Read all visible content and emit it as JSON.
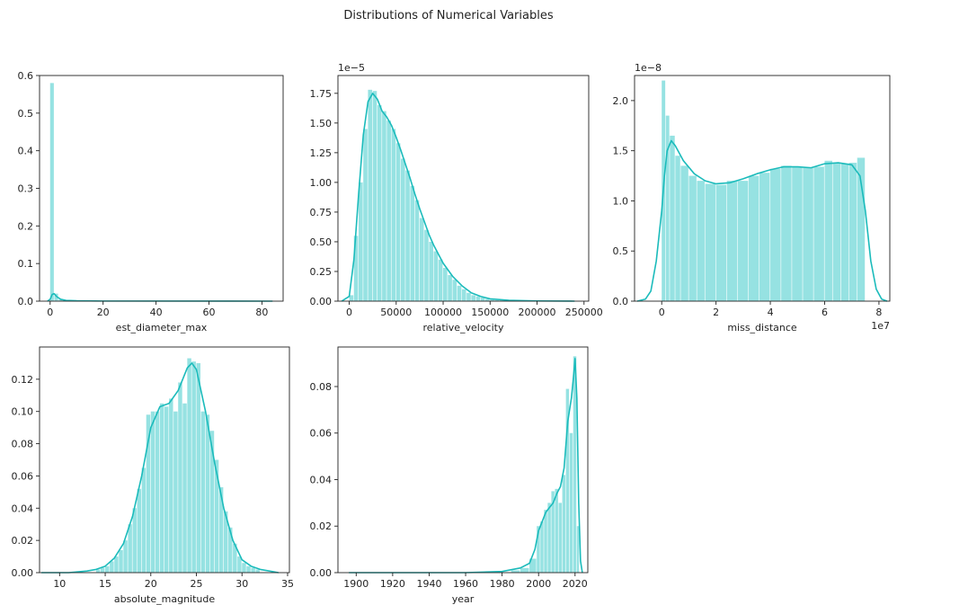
{
  "figure": {
    "title": "Distributions of Numerical Variables"
  },
  "colors": {
    "bar_fill": "#96e2e2",
    "kde_line": "#1bbbbb",
    "axes": "#222222"
  },
  "chart_data": [
    {
      "type": "histogram+kde",
      "xlabel": "est_diameter_max",
      "xlim": [
        -4,
        88
      ],
      "ylim": [
        0,
        0.6
      ],
      "xticks": [
        0,
        20,
        40,
        60,
        80
      ],
      "xtick_labels": [
        "0",
        "20",
        "40",
        "60",
        "80"
      ],
      "yticks": [
        0.0,
        0.1,
        0.2,
        0.3,
        0.4,
        0.5,
        0.6
      ],
      "ytick_labels": [
        "0.0",
        "0.1",
        "0.2",
        "0.3",
        "0.4",
        "0.5",
        "0.6"
      ],
      "y_exponent": "",
      "x_exponent": "",
      "bins": [
        [
          0,
          1.6,
          0.58
        ],
        [
          1.6,
          3.2,
          0.02
        ],
        [
          3.2,
          4.8,
          0.004
        ],
        [
          4.8,
          6.4,
          0.002
        ]
      ],
      "kde": [
        [
          -1,
          0
        ],
        [
          0,
          0.005
        ],
        [
          0.8,
          0.018
        ],
        [
          1.5,
          0.02
        ],
        [
          2.5,
          0.012
        ],
        [
          4,
          0.005
        ],
        [
          6,
          0.002
        ],
        [
          10,
          0.001
        ],
        [
          20,
          0.0003
        ],
        [
          84,
          0
        ]
      ]
    },
    {
      "type": "histogram+kde",
      "xlabel": "relative_velocity",
      "xlim": [
        -12000,
        255000
      ],
      "ylim": [
        0,
        1.9
      ],
      "xticks": [
        0,
        50000,
        100000,
        150000,
        200000,
        250000
      ],
      "xtick_labels": [
        "0",
        "50000",
        "100000",
        "150000",
        "200000",
        "250000"
      ],
      "yticks": [
        0.0,
        0.25,
        0.5,
        0.75,
        1.0,
        1.25,
        1.5,
        1.75
      ],
      "ytick_labels": [
        "0.00",
        "0.25",
        "0.50",
        "0.75",
        "1.00",
        "1.25",
        "1.50",
        "1.75"
      ],
      "y_exponent": "1e−5",
      "x_exponent": "",
      "bins": [
        [
          0,
          5000,
          0.05
        ],
        [
          5000,
          10000,
          0.55
        ],
        [
          10000,
          15000,
          1.0
        ],
        [
          15000,
          20000,
          1.45
        ],
        [
          20000,
          25000,
          1.78
        ],
        [
          25000,
          30000,
          1.77
        ],
        [
          30000,
          35000,
          1.65
        ],
        [
          35000,
          40000,
          1.6
        ],
        [
          40000,
          45000,
          1.52
        ],
        [
          45000,
          50000,
          1.45
        ],
        [
          50000,
          55000,
          1.33
        ],
        [
          55000,
          60000,
          1.2
        ],
        [
          60000,
          65000,
          1.1
        ],
        [
          65000,
          70000,
          0.97
        ],
        [
          70000,
          75000,
          0.85
        ],
        [
          75000,
          80000,
          0.7
        ],
        [
          80000,
          85000,
          0.6
        ],
        [
          85000,
          90000,
          0.5
        ],
        [
          90000,
          95000,
          0.42
        ],
        [
          95000,
          100000,
          0.35
        ],
        [
          100000,
          105000,
          0.28
        ],
        [
          105000,
          110000,
          0.22
        ],
        [
          110000,
          115000,
          0.18
        ],
        [
          115000,
          120000,
          0.13
        ],
        [
          120000,
          125000,
          0.1
        ],
        [
          125000,
          130000,
          0.07
        ],
        [
          130000,
          135000,
          0.05
        ],
        [
          135000,
          140000,
          0.04
        ],
        [
          140000,
          145000,
          0.03
        ],
        [
          145000,
          150000,
          0.02
        ],
        [
          150000,
          155000,
          0.015
        ],
        [
          155000,
          160000,
          0.01
        ],
        [
          160000,
          170000,
          0.007
        ],
        [
          170000,
          180000,
          0.004
        ],
        [
          180000,
          190000,
          0.003
        ],
        [
          190000,
          200000,
          0.002
        ]
      ],
      "kde": [
        [
          -8000,
          0
        ],
        [
          0,
          0.04
        ],
        [
          5000,
          0.35
        ],
        [
          10000,
          0.9
        ],
        [
          15000,
          1.4
        ],
        [
          20000,
          1.68
        ],
        [
          25000,
          1.75
        ],
        [
          30000,
          1.7
        ],
        [
          35000,
          1.6
        ],
        [
          40000,
          1.55
        ],
        [
          45000,
          1.48
        ],
        [
          50000,
          1.38
        ],
        [
          55000,
          1.27
        ],
        [
          60000,
          1.15
        ],
        [
          65000,
          1.03
        ],
        [
          70000,
          0.9
        ],
        [
          75000,
          0.78
        ],
        [
          80000,
          0.67
        ],
        [
          85000,
          0.56
        ],
        [
          90000,
          0.47
        ],
        [
          100000,
          0.32
        ],
        [
          110000,
          0.21
        ],
        [
          120000,
          0.13
        ],
        [
          130000,
          0.07
        ],
        [
          140000,
          0.04
        ],
        [
          150000,
          0.02
        ],
        [
          170000,
          0.007
        ],
        [
          200000,
          0.002
        ],
        [
          240000,
          0
        ]
      ]
    },
    {
      "type": "histogram+kde",
      "xlabel": "miss_distance",
      "xlim": [
        -1.0,
        8.4
      ],
      "ylim": [
        0,
        2.25
      ],
      "xticks": [
        0,
        2,
        4,
        6,
        8
      ],
      "xtick_labels": [
        "0",
        "2",
        "4",
        "6",
        "8"
      ],
      "yticks": [
        0.0,
        0.5,
        1.0,
        1.5,
        2.0
      ],
      "ytick_labels": [
        "0.0",
        "0.5",
        "1.0",
        "1.5",
        "2.0"
      ],
      "y_exponent": "1e−8",
      "x_exponent": "1e7",
      "bins": [
        [
          0,
          0.15,
          2.2
        ],
        [
          0.15,
          0.3,
          1.85
        ],
        [
          0.3,
          0.5,
          1.65
        ],
        [
          0.5,
          0.7,
          1.45
        ],
        [
          0.7,
          1.0,
          1.35
        ],
        [
          1.0,
          1.3,
          1.25
        ],
        [
          1.3,
          1.6,
          1.2
        ],
        [
          1.6,
          2.0,
          1.17
        ],
        [
          2.0,
          2.4,
          1.16
        ],
        [
          2.4,
          2.8,
          1.2
        ],
        [
          2.8,
          3.2,
          1.2
        ],
        [
          3.2,
          3.6,
          1.25
        ],
        [
          3.6,
          4.0,
          1.28
        ],
        [
          4.0,
          4.4,
          1.32
        ],
        [
          4.4,
          4.8,
          1.35
        ],
        [
          4.8,
          5.2,
          1.34
        ],
        [
          5.2,
          5.6,
          1.33
        ],
        [
          5.6,
          6.0,
          1.34
        ],
        [
          6.0,
          6.3,
          1.4
        ],
        [
          6.3,
          6.6,
          1.38
        ],
        [
          6.6,
          6.9,
          1.37
        ],
        [
          6.9,
          7.2,
          1.38
        ],
        [
          7.2,
          7.5,
          1.43
        ]
      ],
      "kde": [
        [
          -0.9,
          0
        ],
        [
          -0.6,
          0.02
        ],
        [
          -0.4,
          0.1
        ],
        [
          -0.2,
          0.4
        ],
        [
          0,
          0.9
        ],
        [
          0.1,
          1.25
        ],
        [
          0.2,
          1.5
        ],
        [
          0.35,
          1.6
        ],
        [
          0.5,
          1.55
        ],
        [
          0.8,
          1.4
        ],
        [
          1.2,
          1.27
        ],
        [
          1.6,
          1.2
        ],
        [
          2.0,
          1.17
        ],
        [
          2.5,
          1.18
        ],
        [
          3.0,
          1.22
        ],
        [
          3.5,
          1.27
        ],
        [
          4.0,
          1.31
        ],
        [
          4.5,
          1.34
        ],
        [
          5.0,
          1.34
        ],
        [
          5.5,
          1.33
        ],
        [
          6.0,
          1.37
        ],
        [
          6.5,
          1.38
        ],
        [
          7.0,
          1.36
        ],
        [
          7.3,
          1.25
        ],
        [
          7.5,
          0.9
        ],
        [
          7.7,
          0.4
        ],
        [
          7.9,
          0.12
        ],
        [
          8.1,
          0.02
        ],
        [
          8.3,
          0
        ]
      ]
    },
    {
      "type": "histogram+kde",
      "xlabel": "absolute_magnitude",
      "xlim": [
        7.8,
        35.2
      ],
      "ylim": [
        0,
        0.14
      ],
      "xticks": [
        10,
        15,
        20,
        25,
        30,
        35
      ],
      "xtick_labels": [
        "10",
        "15",
        "20",
        "25",
        "30",
        "35"
      ],
      "yticks": [
        0.0,
        0.02,
        0.04,
        0.06,
        0.08,
        0.1,
        0.12
      ],
      "ytick_labels": [
        "0.00",
        "0.02",
        "0.04",
        "0.06",
        "0.08",
        "0.10",
        "0.12"
      ],
      "y_exponent": "",
      "x_exponent": "",
      "bins": [
        [
          14,
          14.5,
          0.002
        ],
        [
          14.5,
          15,
          0.003
        ],
        [
          15,
          15.5,
          0.004
        ],
        [
          15.5,
          16,
          0.007
        ],
        [
          16,
          16.5,
          0.01
        ],
        [
          16.5,
          17,
          0.014
        ],
        [
          17,
          17.5,
          0.02
        ],
        [
          17.5,
          18,
          0.03
        ],
        [
          18,
          18.5,
          0.04
        ],
        [
          18.5,
          19,
          0.052
        ],
        [
          19,
          19.5,
          0.065
        ],
        [
          19.5,
          20,
          0.098
        ],
        [
          20,
          20.5,
          0.1
        ],
        [
          20.5,
          21,
          0.1
        ],
        [
          21,
          21.5,
          0.105
        ],
        [
          21.5,
          22,
          0.103
        ],
        [
          22,
          22.5,
          0.108
        ],
        [
          22.5,
          23,
          0.1
        ],
        [
          23,
          23.5,
          0.118
        ],
        [
          23.5,
          24,
          0.105
        ],
        [
          24,
          24.5,
          0.133
        ],
        [
          24.5,
          25,
          0.131
        ],
        [
          25,
          25.5,
          0.13
        ],
        [
          25.5,
          26,
          0.1
        ],
        [
          26,
          26.5,
          0.098
        ],
        [
          26.5,
          27,
          0.088
        ],
        [
          27,
          27.5,
          0.07
        ],
        [
          27.5,
          28,
          0.053
        ],
        [
          28,
          28.5,
          0.038
        ],
        [
          28.5,
          29,
          0.028
        ],
        [
          29,
          29.5,
          0.018
        ],
        [
          29.5,
          30,
          0.01
        ],
        [
          30,
          30.5,
          0.006
        ],
        [
          30.5,
          31,
          0.004
        ],
        [
          31,
          31.5,
          0.003
        ],
        [
          31.5,
          32,
          0.002
        ]
      ],
      "kde": [
        [
          8,
          0
        ],
        [
          11,
          0
        ],
        [
          13,
          0.001
        ],
        [
          14,
          0.002
        ],
        [
          15,
          0.004
        ],
        [
          16,
          0.009
        ],
        [
          17,
          0.018
        ],
        [
          18,
          0.035
        ],
        [
          19,
          0.06
        ],
        [
          20,
          0.09
        ],
        [
          21,
          0.103
        ],
        [
          22,
          0.105
        ],
        [
          23,
          0.113
        ],
        [
          24,
          0.127
        ],
        [
          24.5,
          0.13
        ],
        [
          25,
          0.126
        ],
        [
          26,
          0.1
        ],
        [
          27,
          0.068
        ],
        [
          28,
          0.04
        ],
        [
          29,
          0.02
        ],
        [
          30,
          0.008
        ],
        [
          31,
          0.004
        ],
        [
          32,
          0.002
        ],
        [
          33,
          0.001
        ],
        [
          34,
          0
        ]
      ]
    },
    {
      "type": "histogram+kde",
      "xlabel": "year",
      "xlim": [
        1890,
        2027
      ],
      "ylim": [
        0,
        0.097
      ],
      "xticks": [
        1900,
        1920,
        1940,
        1960,
        1980,
        2000,
        2020
      ],
      "xtick_labels": [
        "1900",
        "1920",
        "1940",
        "1960",
        "1980",
        "2000",
        "2020"
      ],
      "yticks": [
        0.0,
        0.02,
        0.04,
        0.06,
        0.08
      ],
      "ytick_labels": [
        "0.00",
        "0.02",
        "0.04",
        "0.06",
        "0.08"
      ],
      "y_exponent": "",
      "x_exponent": "",
      "bins": [
        [
          1985,
          1990,
          0.001
        ],
        [
          1990,
          1995,
          0.002
        ],
        [
          1995,
          1999,
          0.006
        ],
        [
          1999,
          2001,
          0.02
        ],
        [
          2001,
          2003,
          0.022
        ],
        [
          2003,
          2005,
          0.027
        ],
        [
          2005,
          2007,
          0.03
        ],
        [
          2007,
          2009,
          0.035
        ],
        [
          2009,
          2011,
          0.036
        ],
        [
          2011,
          2013,
          0.03
        ],
        [
          2013,
          2015,
          0.042
        ],
        [
          2015,
          2017,
          0.079
        ],
        [
          2017,
          2019,
          0.06
        ],
        [
          2019,
          2021,
          0.093
        ],
        [
          2021,
          2022.5,
          0.02
        ]
      ],
      "kde": [
        [
          1896,
          0
        ],
        [
          1960,
          0
        ],
        [
          1980,
          0.0005
        ],
        [
          1990,
          0.002
        ],
        [
          1995,
          0.004
        ],
        [
          1998,
          0.01
        ],
        [
          2000,
          0.018
        ],
        [
          2002,
          0.022
        ],
        [
          2004,
          0.026
        ],
        [
          2006,
          0.028
        ],
        [
          2008,
          0.03
        ],
        [
          2010,
          0.034
        ],
        [
          2012,
          0.037
        ],
        [
          2014,
          0.045
        ],
        [
          2016,
          0.065
        ],
        [
          2018,
          0.075
        ],
        [
          2019,
          0.083
        ],
        [
          2020,
          0.092
        ],
        [
          2021,
          0.075
        ],
        [
          2022,
          0.03
        ],
        [
          2023,
          0.005
        ],
        [
          2024,
          0
        ]
      ]
    }
  ]
}
